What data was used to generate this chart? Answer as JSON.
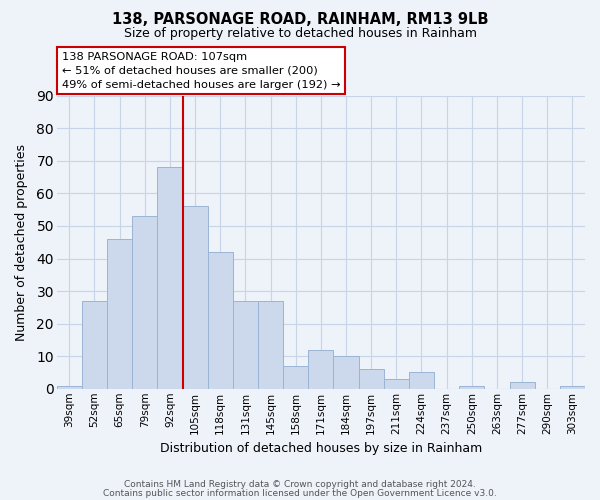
{
  "title": "138, PARSONAGE ROAD, RAINHAM, RM13 9LB",
  "subtitle": "Size of property relative to detached houses in Rainham",
  "xlabel": "Distribution of detached houses by size in Rainham",
  "ylabel": "Number of detached properties",
  "categories": [
    "39sqm",
    "52sqm",
    "65sqm",
    "79sqm",
    "92sqm",
    "105sqm",
    "118sqm",
    "131sqm",
    "145sqm",
    "158sqm",
    "171sqm",
    "184sqm",
    "197sqm",
    "211sqm",
    "224sqm",
    "237sqm",
    "250sqm",
    "263sqm",
    "277sqm",
    "290sqm",
    "303sqm"
  ],
  "values": [
    1,
    27,
    46,
    53,
    68,
    56,
    42,
    27,
    27,
    7,
    12,
    10,
    6,
    3,
    5,
    0,
    1,
    0,
    2,
    0,
    1
  ],
  "bar_color": "#ccd9ed",
  "bar_edge_color": "#9ab4d4",
  "reference_line_idx": 5,
  "reference_line_color": "#cc0000",
  "ylim": [
    0,
    90
  ],
  "yticks": [
    0,
    10,
    20,
    30,
    40,
    50,
    60,
    70,
    80,
    90
  ],
  "annotation_title": "138 PARSONAGE ROAD: 107sqm",
  "annotation_line1": "← 51% of detached houses are smaller (200)",
  "annotation_line2": "49% of semi-detached houses are larger (192) →",
  "annotation_box_color": "#ffffff",
  "annotation_box_edge": "#cc0000",
  "grid_color": "#c8d4e8",
  "footnote1": "Contains HM Land Registry data © Crown copyright and database right 2024.",
  "footnote2": "Contains public sector information licensed under the Open Government Licence v3.0.",
  "bg_color": "#eef2f9"
}
